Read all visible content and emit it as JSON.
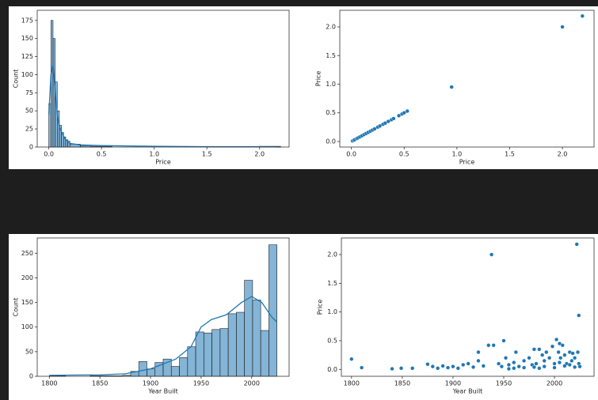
{
  "chart_data": [
    {
      "type": "histogram",
      "xlabel": "Price",
      "ylabel": "Count",
      "color": "#1f77b4",
      "xlim": [
        -0.11,
        2.28
      ],
      "ylim": [
        0,
        189
      ],
      "xticks": [
        {
          "value": 0,
          "label": "0.0"
        },
        {
          "value": 0.5,
          "label": "0.5"
        },
        {
          "value": 1,
          "label": "1.0"
        },
        {
          "value": 1.5,
          "label": "1.5"
        },
        {
          "value": 2,
          "label": "2.0"
        }
      ],
      "yticks": [
        0,
        25,
        50,
        75,
        100,
        125,
        150,
        175
      ],
      "bins": [
        0,
        0.02,
        0.04,
        0.06,
        0.08,
        0.1,
        0.12,
        0.14,
        0.16,
        0.18,
        0.2,
        0.3,
        0.4,
        0.6,
        1.0,
        2.0,
        2.2
      ],
      "values": [
        60,
        175,
        150,
        90,
        50,
        30,
        20,
        14,
        10,
        8,
        4,
        2,
        1,
        0,
        0,
        1
      ],
      "kde": {
        "x": [
          0,
          0.02,
          0.04,
          0.06,
          0.08,
          0.1,
          0.15,
          0.2,
          0.3,
          0.5,
          1,
          1.5,
          2,
          2.2
        ],
        "values": [
          45,
          100,
          115,
          80,
          45,
          28,
          12,
          5,
          3,
          2,
          1,
          0.5,
          0.5,
          0
        ]
      }
    },
    {
      "type": "scatter",
      "xlabel": "Price",
      "ylabel": "Price",
      "color": "#1f77b4",
      "xlim": [
        -0.11,
        2.3
      ],
      "ylim": [
        -0.097,
        2.29
      ],
      "xticks": [
        {
          "value": 0,
          "label": "0.0"
        },
        {
          "value": 0.5,
          "label": "0.5"
        },
        {
          "value": 1,
          "label": "1.0"
        },
        {
          "value": 1.5,
          "label": "1.5"
        },
        {
          "value": 2,
          "label": "2.0"
        }
      ],
      "yticks": [
        {
          "value": 0,
          "label": "0.0"
        },
        {
          "value": 0.5,
          "label": "0.5"
        },
        {
          "value": 1,
          "label": "1.0"
        },
        {
          "value": 1.5,
          "label": "1.5"
        },
        {
          "value": 2,
          "label": "2.0"
        }
      ],
      "x": [
        0.01,
        0.02,
        0.03,
        0.05,
        0.06,
        0.08,
        0.1,
        0.12,
        0.14,
        0.16,
        0.18,
        0.2,
        0.22,
        0.25,
        0.27,
        0.3,
        0.32,
        0.35,
        0.38,
        0.4,
        0.45,
        0.48,
        0.5,
        0.53,
        0.95,
        2.0,
        2.19
      ],
      "values": [
        0.01,
        0.02,
        0.03,
        0.05,
        0.06,
        0.08,
        0.1,
        0.12,
        0.14,
        0.16,
        0.18,
        0.2,
        0.22,
        0.25,
        0.27,
        0.3,
        0.32,
        0.35,
        0.38,
        0.4,
        0.45,
        0.48,
        0.5,
        0.53,
        0.95,
        2.0,
        2.19
      ]
    },
    {
      "type": "histogram",
      "xlabel": "Year Built",
      "ylabel": "Count",
      "color": "#1f77b4",
      "xlim": [
        1788,
        2037
      ],
      "ylim": [
        0,
        281
      ],
      "xticks": [
        1800,
        1850,
        1900,
        1950,
        2000
      ],
      "yticks": [
        0,
        50,
        100,
        150,
        200,
        250
      ],
      "bins": [
        1800,
        1808.04,
        1816.07,
        1824.11,
        1832.14,
        1840.18,
        1848.21,
        1856.25,
        1864.29,
        1872.32,
        1880.36,
        1888.39,
        1896.43,
        1904.46,
        1912.5,
        1920.54,
        1928.57,
        1936.61,
        1944.64,
        1952.68,
        1960.71,
        1968.75,
        1976.79,
        1984.82,
        1992.86,
        2000.89,
        2008.93,
        2016.96,
        2025
      ],
      "values": [
        1,
        1,
        0,
        0,
        0,
        1,
        1,
        1,
        1,
        2,
        10,
        30,
        15,
        28,
        35,
        20,
        38,
        60,
        90,
        88,
        95,
        97,
        127,
        130,
        195,
        155,
        93,
        267
      ],
      "kde": {
        "x": [
          1800,
          1850,
          1875,
          1900,
          1925,
          1940,
          1950,
          1960,
          1975,
          1990,
          2000,
          2010,
          2020,
          2025
        ],
        "values": [
          2,
          3,
          5,
          15,
          35,
          60,
          100,
          115,
          125,
          150,
          162,
          150,
          120,
          110
        ]
      }
    },
    {
      "type": "scatter",
      "xlabel": "Year Built",
      "ylabel": "Price",
      "color": "#1f77b4",
      "xlim": [
        1790,
        2039
      ],
      "ylim": [
        -0.12,
        2.29
      ],
      "xticks": [
        1800,
        1850,
        1900,
        1950,
        2000
      ],
      "yticks": [
        {
          "value": 0,
          "label": "0.0"
        },
        {
          "value": 0.5,
          "label": "0.5"
        },
        {
          "value": 1,
          "label": "1.0"
        },
        {
          "value": 1.5,
          "label": "1.5"
        },
        {
          "value": 2,
          "label": "2.0"
        }
      ],
      "x": [
        1800,
        1810,
        1840,
        1849,
        1860,
        1875,
        1880,
        1885,
        1890,
        1895,
        1900,
        1905,
        1910,
        1915,
        1920,
        1925,
        1925,
        1930,
        1935,
        1938,
        1940,
        1945,
        1948,
        1950,
        1952,
        1955,
        1960,
        1962,
        1965,
        1970,
        1975,
        1978,
        1980,
        1982,
        1985,
        1988,
        1990,
        1992,
        1995,
        1998,
        2000,
        2002,
        2004,
        2005,
        2006,
        2008,
        2010,
        2012,
        2015,
        2017,
        2018,
        2020,
        2022,
        2023,
        2024,
        2024,
        2025,
        1960,
        1970,
        1980,
        1990,
        2000,
        2010,
        2020,
        1955,
        1985,
        2015,
        2005
      ],
      "values": [
        0.18,
        0.03,
        0.01,
        0.02,
        0.02,
        0.09,
        0.05,
        0.02,
        0.06,
        0.03,
        0.05,
        0.02,
        0.08,
        0.1,
        0.04,
        0.3,
        0.15,
        0.06,
        0.42,
        2.0,
        0.42,
        0.1,
        0.05,
        0.5,
        0.2,
        0.08,
        0.12,
        0.3,
        0.05,
        0.15,
        0.2,
        0.08,
        0.35,
        0.1,
        0.35,
        0.25,
        0.15,
        0.3,
        0.2,
        0.4,
        0.1,
        0.52,
        0.3,
        0.45,
        0.2,
        0.42,
        0.25,
        0.1,
        0.3,
        0.15,
        0.28,
        0.2,
        2.18,
        0.3,
        0.94,
        0.1,
        0.05,
        0.02,
        0.03,
        0.04,
        0.05,
        0.03,
        0.06,
        0.04,
        0.01,
        0.02,
        0.08,
        0.12
      ]
    }
  ]
}
